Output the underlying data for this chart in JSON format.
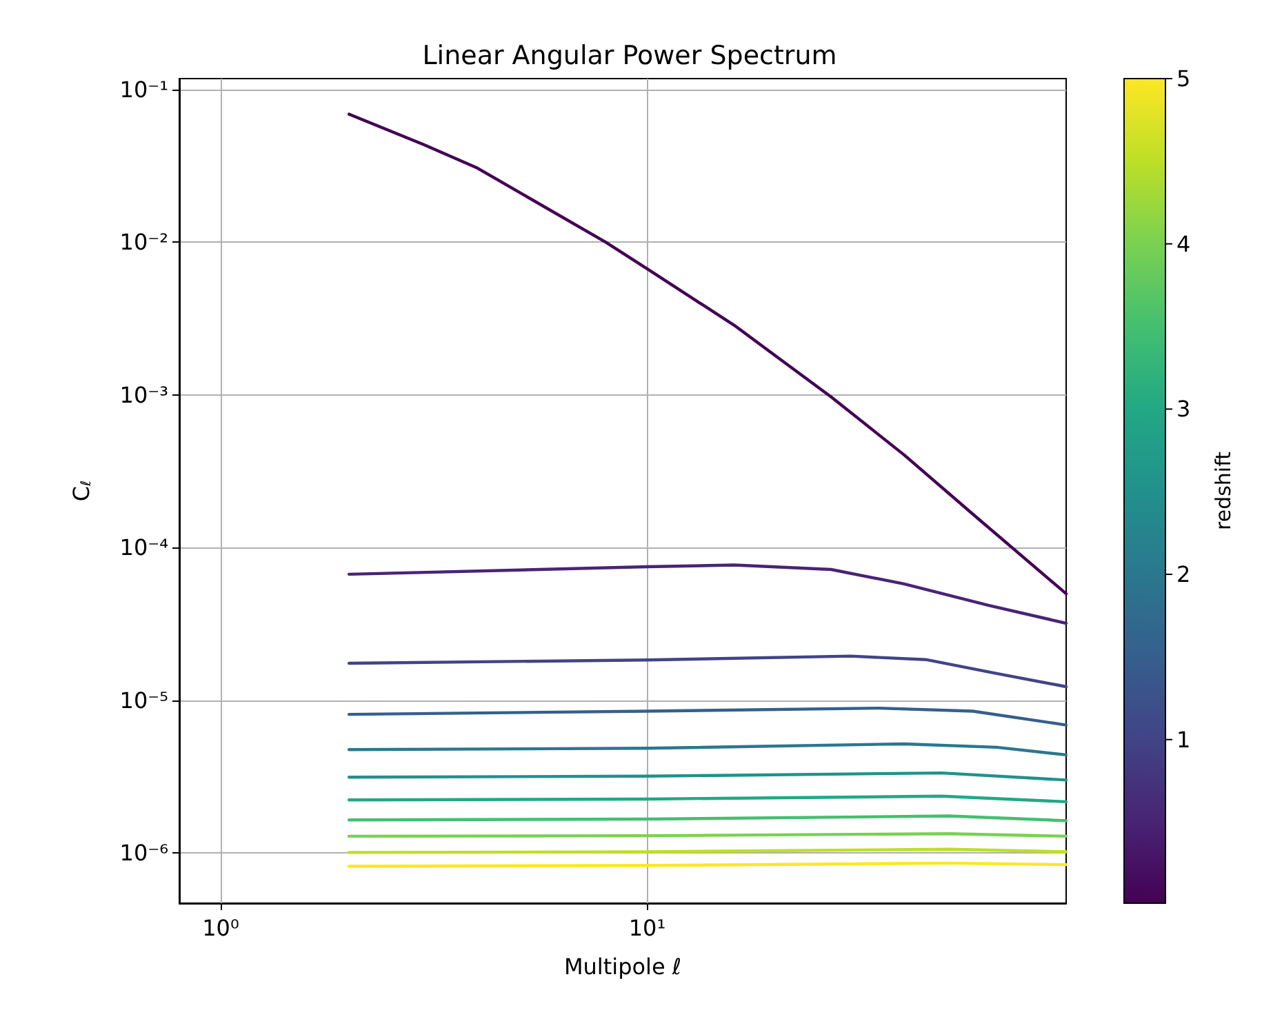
{
  "chart_data": {
    "type": "line",
    "title": "Linear Angular Power Spectrum",
    "xlabel": "Multipole ℓ",
    "ylabel": "C$_{ℓ}$",
    "clabel": "redshift",
    "log": "xy",
    "grid": true,
    "marker": "none",
    "line_style": "solid",
    "xlim": [
      0.8,
      96
    ],
    "ylim": [
      4.7e-07,
      0.118
    ],
    "xticks": [
      {
        "value": 1,
        "label": "10⁰"
      },
      {
        "value": 10,
        "label": "10¹"
      }
    ],
    "yticks": [
      {
        "value": 1e-06,
        "label": "10⁻⁶"
      },
      {
        "value": 1e-05,
        "label": "10⁻⁵"
      },
      {
        "value": 0.0001,
        "label": "10⁻⁴"
      },
      {
        "value": 0.001,
        "label": "10⁻³"
      },
      {
        "value": 0.01,
        "label": "10⁻²"
      },
      {
        "value": 0.1,
        "label": "10⁻¹"
      }
    ],
    "clim": [
      0.01,
      5
    ],
    "cticks": [
      1,
      2,
      3,
      4,
      5
    ],
    "series": [
      {
        "color": "#440154",
        "x": [
          2,
          3,
          4,
          8,
          10,
          16,
          27,
          40,
          60,
          96
        ],
        "values": [
          0.069,
          0.0435,
          0.0306,
          0.01,
          0.0067,
          0.00286,
          0.00097,
          0.000406,
          0.000153,
          5e-05
        ]
      },
      {
        "color": "#482475",
        "x": [
          2,
          10,
          16,
          27,
          40,
          63,
          96
        ],
        "values": [
          6.7e-05,
          7.5e-05,
          7.7e-05,
          7.2e-05,
          5.8e-05,
          4.2e-05,
          3.2e-05
        ]
      },
      {
        "color": "#414487",
        "x": [
          2,
          10,
          30,
          45,
          66,
          96
        ],
        "values": [
          1.75e-05,
          1.84e-05,
          1.95e-05,
          1.85e-05,
          1.5e-05,
          1.23e-05
        ]
      },
      {
        "color": "#355f8d",
        "x": [
          2,
          10,
          35,
          58,
          96
        ],
        "values": [
          8.1e-06,
          8.5e-06,
          8.9e-06,
          8.5e-06,
          6.9e-06
        ]
      },
      {
        "color": "#2a788e",
        "x": [
          2,
          10,
          40,
          66,
          96
        ],
        "values": [
          4.76e-06,
          4.86e-06,
          5.19e-06,
          4.93e-06,
          4.4e-06
        ]
      },
      {
        "color": "#21918c",
        "x": [
          2,
          10,
          49,
          96
        ],
        "values": [
          3.14e-06,
          3.19e-06,
          3.35e-06,
          3.01e-06
        ]
      },
      {
        "color": "#22a884",
        "x": [
          2,
          10,
          49,
          96
        ],
        "values": [
          2.23e-06,
          2.26e-06,
          2.36e-06,
          2.17e-06
        ]
      },
      {
        "color": "#44bf70",
        "x": [
          2,
          10,
          51,
          96
        ],
        "values": [
          1.65e-06,
          1.67e-06,
          1.75e-06,
          1.63e-06
        ]
      },
      {
        "color": "#7ad151",
        "x": [
          2,
          10,
          51,
          96
        ],
        "values": [
          1.29e-06,
          1.3e-06,
          1.34e-06,
          1.29e-06
        ]
      },
      {
        "color": "#bddf26",
        "x": [
          2,
          10,
          51,
          96
        ],
        "values": [
          1.01e-06,
          1.02e-06,
          1.06e-06,
          1.02e-06
        ]
      },
      {
        "color": "#fde725",
        "x": [
          2,
          10,
          51,
          96
        ],
        "values": [
          8.2e-07,
          8.3e-07,
          8.6e-07,
          8.4e-07
        ]
      }
    ]
  }
}
